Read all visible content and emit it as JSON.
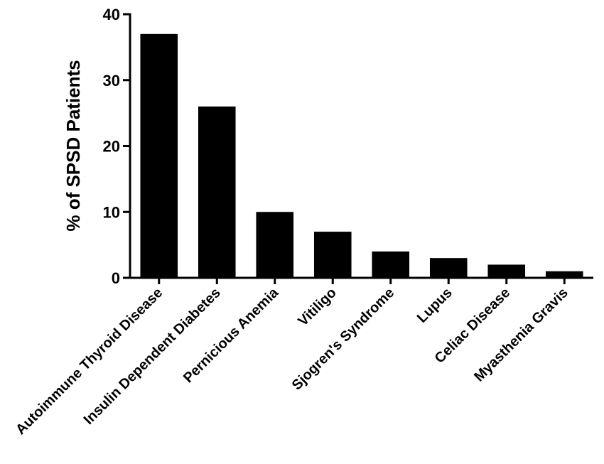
{
  "chart_data": {
    "type": "bar",
    "title": "",
    "xlabel": "",
    "ylabel": "% of SPSD Patients",
    "ylim": [
      0,
      40
    ],
    "yticks": [
      "0",
      "10",
      "20",
      "30",
      "40"
    ],
    "grid": false,
    "categories": [
      "Autoimmune Thyroid Disease",
      "Insulin Dependent Diabetes",
      "Pernicious Anemia",
      "Vitiligo",
      "Sjogren's Syndrome",
      "Lupus",
      "Celiac Disease",
      "Myasthenia Gravis"
    ],
    "values": [
      37,
      26,
      10,
      7,
      4,
      3,
      2,
      1
    ],
    "colors": {
      "bar": "#000000",
      "axis": "#000000"
    }
  }
}
